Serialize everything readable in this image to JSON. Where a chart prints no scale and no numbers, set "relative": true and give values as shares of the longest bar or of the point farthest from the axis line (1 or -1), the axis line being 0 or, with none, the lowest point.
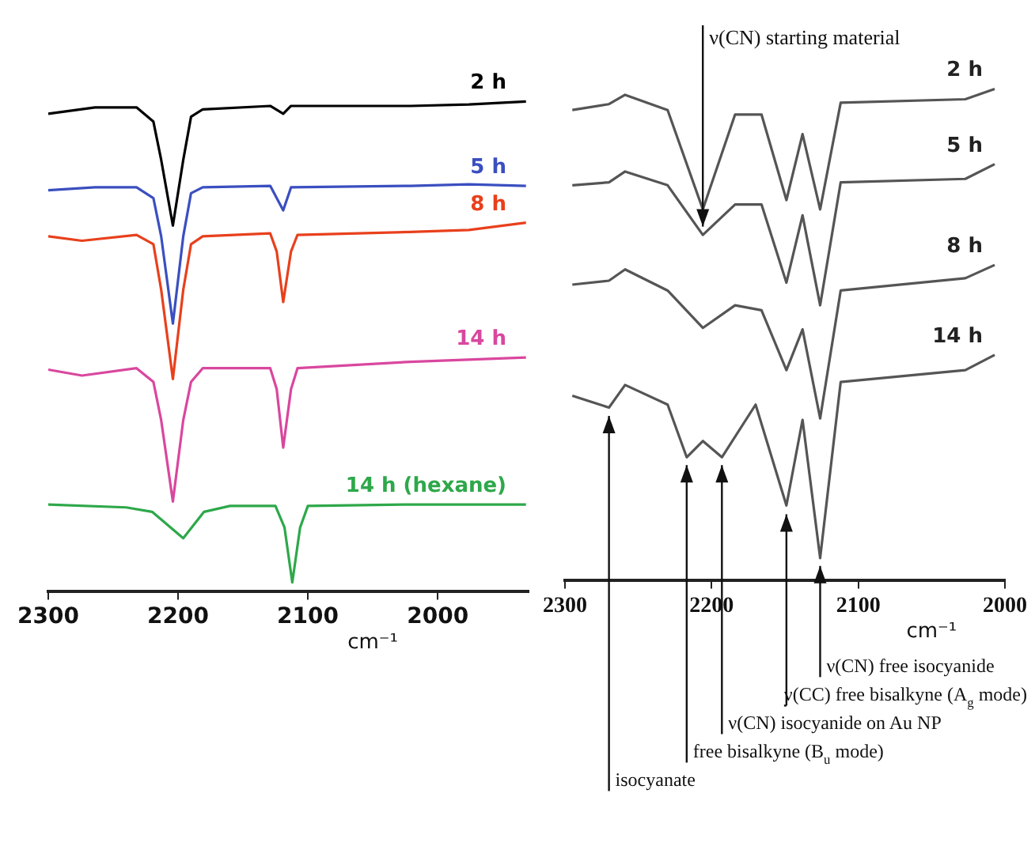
{
  "chart_data": [
    {
      "type": "line",
      "relative": true,
      "xlabel": "cm⁻¹",
      "xlim": [
        2300,
        1930
      ],
      "xticks": [
        2300,
        2200,
        2100,
        2000
      ],
      "grid": false,
      "legend": false,
      "marker": "none",
      "series": [
        {
          "name": "2 h",
          "color": "#000000",
          "x": [
            2300,
            2264,
            2232,
            2219,
            2213,
            2204,
            2196,
            2190,
            2181,
            2129,
            2119,
            2113,
            2021,
            1976,
            1932
          ],
          "values": [
            0.975,
            0.988,
            0.988,
            0.959,
            0.881,
            0.747,
            0.881,
            0.969,
            0.984,
            0.991,
            0.975,
            0.991,
            0.991,
            0.994,
            1.0
          ]
        },
        {
          "name": "5 h",
          "color": "#3a4fc0",
          "x": [
            2300,
            2264,
            2232,
            2219,
            2213,
            2204,
            2196,
            2190,
            2181,
            2129,
            2119,
            2113,
            2021,
            1976,
            1932
          ],
          "values": [
            0.819,
            0.825,
            0.825,
            0.803,
            0.725,
            0.547,
            0.725,
            0.813,
            0.825,
            0.828,
            0.778,
            0.825,
            0.828,
            0.831,
            0.828
          ]
        },
        {
          "name": "8 h",
          "color": "#e8401c",
          "x": [
            2300,
            2274,
            2232,
            2219,
            2213,
            2204,
            2196,
            2190,
            2181,
            2129,
            2124,
            2119,
            2113,
            2108,
            2021,
            1976,
            1932
          ],
          "values": [
            0.725,
            0.716,
            0.728,
            0.709,
            0.616,
            0.434,
            0.616,
            0.709,
            0.725,
            0.731,
            0.694,
            0.591,
            0.694,
            0.728,
            0.734,
            0.738,
            0.753
          ]
        },
        {
          "name": "14 h",
          "color": "#d9479e",
          "x": [
            2300,
            2274,
            2232,
            2219,
            2213,
            2204,
            2196,
            2190,
            2181,
            2129,
            2124,
            2119,
            2113,
            2108,
            2021,
            1932
          ],
          "values": [
            0.453,
            0.441,
            0.456,
            0.428,
            0.35,
            0.184,
            0.35,
            0.428,
            0.456,
            0.456,
            0.413,
            0.294,
            0.413,
            0.456,
            0.469,
            0.478
          ]
        },
        {
          "name": "14 h (hexane)",
          "color": "#2ea84a",
          "x": [
            2300,
            2240,
            2220,
            2196,
            2180,
            2160,
            2125,
            2118,
            2112,
            2106,
            2100,
            2021,
            1932
          ],
          "values": [
            0.178,
            0.172,
            0.163,
            0.109,
            0.163,
            0.175,
            0.175,
            0.131,
            0.019,
            0.131,
            0.175,
            0.178,
            0.178
          ]
        }
      ]
    },
    {
      "type": "line",
      "relative": true,
      "xlabel": "cm⁻¹",
      "xlim": [
        2300,
        2000
      ],
      "xticks": [
        2300,
        2200,
        2100,
        2000
      ],
      "grid": false,
      "legend": false,
      "marker": "none",
      "series": [
        {
          "name": "2 h",
          "color": "#555555",
          "x": [
            2295,
            2270,
            2259,
            2230,
            2206,
            2184,
            2166,
            2149,
            2138,
            2126,
            2112,
            2027,
            2007
          ],
          "values": [
            0.957,
            0.969,
            0.988,
            0.957,
            0.755,
            0.948,
            0.948,
            0.774,
            0.908,
            0.755,
            0.972,
            0.979,
            1.0
          ]
        },
        {
          "name": "5 h",
          "color": "#555555",
          "x": [
            2295,
            2270,
            2259,
            2230,
            2206,
            2184,
            2166,
            2149,
            2138,
            2126,
            2112,
            2027,
            2007
          ],
          "values": [
            0.804,
            0.81,
            0.832,
            0.804,
            0.703,
            0.765,
            0.765,
            0.606,
            0.743,
            0.56,
            0.81,
            0.817,
            0.847
          ]
        },
        {
          "name": "8 h",
          "color": "#555555",
          "x": [
            2295,
            2270,
            2259,
            2230,
            2206,
            2184,
            2166,
            2149,
            2138,
            2126,
            2112,
            2027,
            2007
          ],
          "values": [
            0.602,
            0.61,
            0.633,
            0.59,
            0.514,
            0.56,
            0.55,
            0.428,
            0.511,
            0.33,
            0.59,
            0.615,
            0.642
          ]
        },
        {
          "name": "14 h",
          "color": "#555555",
          "x": [
            2295,
            2270,
            2259,
            2230,
            2217,
            2206,
            2193,
            2170,
            2149,
            2138,
            2126,
            2112,
            2027,
            2007
          ],
          "values": [
            0.376,
            0.352,
            0.398,
            0.358,
            0.251,
            0.284,
            0.251,
            0.358,
            0.153,
            0.327,
            0.046,
            0.404,
            0.428,
            0.459
          ]
        }
      ],
      "annotations": [
        {
          "text": "ν(CN) starting material",
          "x": 2206,
          "y": 0.72
        },
        {
          "text": "ν(CN) free isocyanide",
          "x": 2126,
          "y": 0.03
        },
        {
          "text": "ν(CC) free bisalkyne (A$_{g}$ mode)",
          "x": 2149,
          "y": 0.135
        },
        {
          "text": "ν(CN) isocyanide on Au NP",
          "x": 2193,
          "y": 0.235
        },
        {
          "text": "free bisalkyne (B$_{u}$ mode)",
          "x": 2217,
          "y": 0.235
        },
        {
          "text": "isocyanate",
          "x": 2270,
          "y": 0.335
        }
      ]
    }
  ]
}
